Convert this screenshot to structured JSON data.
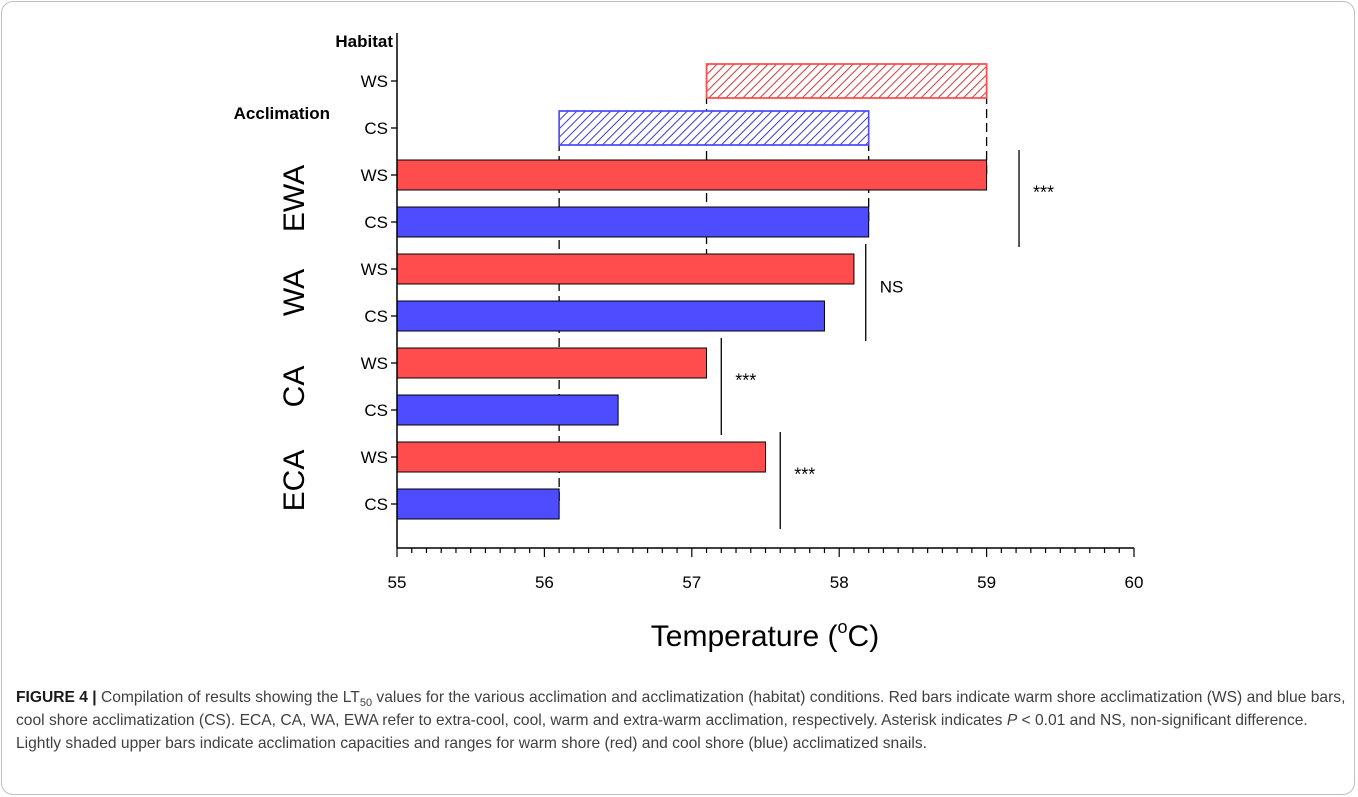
{
  "chart_data": {
    "type": "bar",
    "orientation": "horizontal",
    "xlabel": "Temperature (°C)",
    "xlim": [
      55,
      60
    ],
    "xticks": [
      "55",
      "56",
      "57",
      "58",
      "59",
      "60"
    ],
    "top_labels": {
      "habitat": "Habitat",
      "acclimation": "Acclimation"
    },
    "groups": [
      "EWA",
      "WA",
      "CA",
      "ECA"
    ],
    "colors": {
      "WS": "#ff4d4d",
      "CS": "#4d4dff",
      "outline": "#000000",
      "hatch_WS": "#d63a3a",
      "hatch_CS": "#3a3ad6"
    },
    "range_bars": [
      {
        "label": "WS",
        "start": 57.1,
        "end": 59.0,
        "color": "WS"
      },
      {
        "label": "CS",
        "start": 56.1,
        "end": 58.2,
        "color": "CS"
      }
    ],
    "bars": [
      {
        "group": "EWA",
        "label": "WS",
        "value": 59.0
      },
      {
        "group": "EWA",
        "label": "CS",
        "value": 58.2
      },
      {
        "group": "WA",
        "label": "WS",
        "value": 58.1
      },
      {
        "group": "WA",
        "label": "CS",
        "value": 57.9
      },
      {
        "group": "CA",
        "label": "WS",
        "value": 57.1
      },
      {
        "group": "CA",
        "label": "CS",
        "value": 56.5
      },
      {
        "group": "ECA",
        "label": "WS",
        "value": 57.5
      },
      {
        "group": "ECA",
        "label": "CS",
        "value": 56.1
      }
    ],
    "reference_lines": [
      56.1,
      57.1,
      58.2,
      59.0
    ],
    "significance": [
      {
        "group": "EWA",
        "text": "***",
        "x": 59.22
      },
      {
        "group": "WA",
        "text": "NS",
        "x": 58.18
      },
      {
        "group": "CA",
        "text": "***",
        "x": 57.2
      },
      {
        "group": "ECA",
        "text": "***",
        "x": 57.6
      }
    ]
  },
  "caption": {
    "label": "FIGURE 4 |",
    "text_1": " Compilation of results showing the LT",
    "sub": "50",
    "text_2": " values for the various acclimation and acclimatization (habitat) conditions. Red bars indicate warm shore acclimatization (WS) and blue bars, cool shore acclimatization (CS). ECA, CA, WA, EWA refer to extra-cool, cool, warm and extra-warm acclimation, respectively. Asterisk indicates ",
    "p_symbol": "P",
    "text_3": " < 0.01 and NS, non-significant difference. Lightly shaded upper bars indicate acclimation capacities and ranges for warm shore (red) and cool shore (blue) acclimatized snails."
  }
}
